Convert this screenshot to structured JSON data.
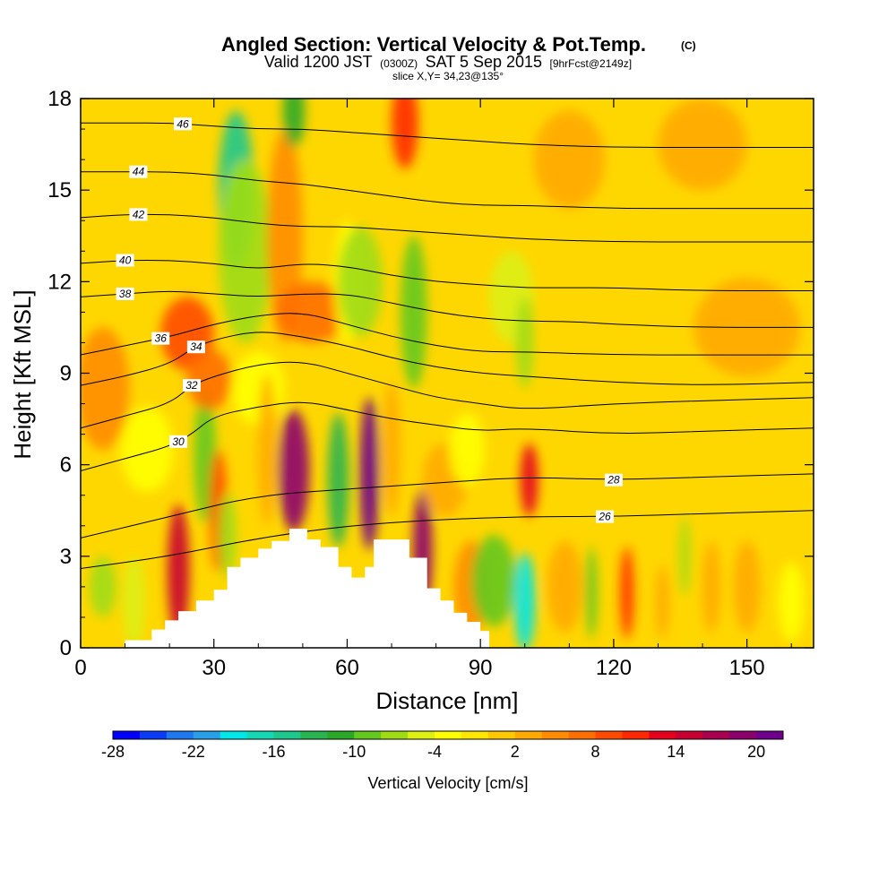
{
  "chart_data": {
    "type": "heatmap",
    "title": "Angled Section: Vertical Velocity & Pot.Temp.",
    "title_mark": "(C)",
    "subtitle_parts": [
      "Valid 1200 JST",
      "(0300Z)",
      "SAT 5 Sep 2015",
      "[9hrFcst@2149z]"
    ],
    "slice_label": "slice X,Y= 34,23@135°",
    "xlabel": "Distance [nm]",
    "ylabel": "Height [Kft MSL]",
    "xlim": [
      0,
      165
    ],
    "ylim": [
      0,
      18
    ],
    "x_ticks": [
      0,
      30,
      60,
      90,
      120,
      150
    ],
    "y_ticks": [
      0,
      3,
      6,
      9,
      12,
      15,
      18
    ],
    "colorbar": {
      "label": "Vertical Velocity [cm/s]",
      "tick_labels": [
        "-28",
        "-22",
        "-16",
        "-10",
        "-4",
        "2",
        "8",
        "14",
        "20"
      ],
      "colors": [
        "#0000ff",
        "#0a3cf8",
        "#1e78f0",
        "#28a0e8",
        "#00e6e6",
        "#14d7b4",
        "#1ec88c",
        "#28b450",
        "#2ca828",
        "#64c81e",
        "#a0dc14",
        "#dcf014",
        "#ffff00",
        "#ffe600",
        "#ffc800",
        "#ffaa00",
        "#ff8c00",
        "#ff6e00",
        "#ff4b00",
        "#ff2800",
        "#e6001e",
        "#c80032",
        "#aa0050",
        "#8c006e",
        "#6e008c"
      ]
    },
    "terrain_profile": {
      "x": [
        0,
        10,
        16,
        19,
        22,
        26,
        30,
        33,
        36,
        40,
        43,
        47,
        51,
        54,
        58,
        61,
        64,
        66,
        71,
        74,
        78,
        81,
        84,
        87,
        90,
        92,
        165
      ],
      "z": [
        0,
        0.25,
        0.6,
        0.9,
        1.2,
        1.55,
        1.9,
        2.65,
        2.95,
        3.25,
        3.5,
        3.9,
        3.55,
        3.3,
        2.65,
        2.3,
        2.65,
        3.55,
        3.55,
        2.95,
        1.95,
        1.55,
        1.15,
        0.85,
        0.55,
        0,
        0
      ]
    },
    "isentropes": [
      {
        "label": "26",
        "x": [
          0,
          20,
          40,
          60,
          80,
          100,
          120,
          140,
          165
        ],
        "y": [
          2.6,
          3.0,
          3.6,
          4.0,
          4.2,
          4.3,
          4.3,
          4.4,
          4.5
        ],
        "label_x": 118
      },
      {
        "label": "28",
        "x": [
          0,
          20,
          40,
          60,
          80,
          100,
          120,
          140,
          165
        ],
        "y": [
          3.6,
          4.3,
          5.0,
          5.2,
          5.4,
          5.6,
          5.5,
          5.6,
          5.7
        ],
        "label_x": 120
      },
      {
        "label": "30",
        "x": [
          0,
          10,
          20,
          25,
          30,
          40,
          50,
          60,
          70,
          80,
          90,
          100,
          120,
          140,
          165
        ],
        "y": [
          5.8,
          6.2,
          6.6,
          7.0,
          7.6,
          7.9,
          8.1,
          7.8,
          7.5,
          7.3,
          7.1,
          7.2,
          7.0,
          7.1,
          7.2
        ],
        "label_x": 22
      },
      {
        "label": "32",
        "x": [
          0,
          10,
          20,
          25,
          30,
          40,
          50,
          60,
          70,
          80,
          90,
          100,
          120,
          140,
          165
        ],
        "y": [
          7.2,
          7.6,
          8.0,
          8.6,
          8.9,
          9.3,
          9.4,
          9.0,
          8.6,
          8.2,
          8.0,
          7.8,
          8.0,
          8.1,
          8.2
        ],
        "label_x": 25
      },
      {
        "label": "34",
        "x": [
          0,
          10,
          20,
          25,
          30,
          40,
          50,
          60,
          70,
          80,
          90,
          100,
          120,
          140,
          165
        ],
        "y": [
          8.6,
          8.9,
          9.3,
          9.8,
          10.1,
          10.4,
          10.2,
          9.9,
          9.5,
          9.2,
          9.0,
          8.9,
          8.7,
          8.6,
          8.7
        ],
        "label_x": 26
      },
      {
        "label": "36",
        "x": [
          0,
          10,
          20,
          25,
          30,
          40,
          50,
          60,
          70,
          80,
          90,
          100,
          120,
          140,
          165
        ],
        "y": [
          9.6,
          9.9,
          10.2,
          10.4,
          10.6,
          10.9,
          11.0,
          10.6,
          10.2,
          9.9,
          9.7,
          9.7,
          9.6,
          9.6,
          9.6
        ],
        "label_x": 18
      },
      {
        "label": "38",
        "x": [
          0,
          10,
          20,
          30,
          40,
          50,
          60,
          70,
          80,
          90,
          100,
          110,
          120,
          140,
          165
        ],
        "y": [
          11.5,
          11.6,
          11.7,
          11.6,
          11.5,
          11.6,
          11.6,
          11.3,
          11.0,
          10.8,
          10.7,
          10.7,
          10.6,
          10.5,
          10.5
        ],
        "label_x": 10
      },
      {
        "label": "40",
        "x": [
          0,
          10,
          20,
          30,
          40,
          50,
          60,
          70,
          80,
          90,
          100,
          110,
          120,
          140,
          165
        ],
        "y": [
          12.6,
          12.7,
          12.7,
          12.6,
          12.4,
          12.6,
          12.5,
          12.2,
          12.0,
          11.9,
          11.8,
          11.8,
          11.8,
          11.7,
          11.7
        ],
        "label_x": 10
      },
      {
        "label": "42",
        "x": [
          0,
          10,
          20,
          30,
          40,
          50,
          60,
          70,
          80,
          90,
          100,
          120,
          140,
          165
        ],
        "y": [
          14.1,
          14.2,
          14.2,
          14.1,
          13.9,
          13.8,
          13.8,
          13.7,
          13.6,
          13.5,
          13.4,
          13.3,
          13.3,
          13.3
        ],
        "label_x": 13
      },
      {
        "label": "44",
        "x": [
          0,
          10,
          20,
          30,
          40,
          50,
          60,
          70,
          80,
          90,
          100,
          120,
          140,
          165
        ],
        "y": [
          15.6,
          15.6,
          15.6,
          15.5,
          15.3,
          15.2,
          15.0,
          14.8,
          14.6,
          14.5,
          14.5,
          14.4,
          14.4,
          14.4
        ],
        "label_x": 13
      },
      {
        "label": "46",
        "x": [
          0,
          10,
          20,
          30,
          40,
          50,
          60,
          70,
          80,
          90,
          100,
          120,
          140,
          165
        ],
        "y": [
          17.2,
          17.2,
          17.2,
          17.1,
          17.0,
          17.0,
          16.9,
          16.8,
          16.7,
          16.6,
          16.5,
          16.4,
          16.4,
          16.4
        ],
        "label_x": 23
      }
    ],
    "velocity_cells": [
      {
        "x": 5,
        "y": 8.5,
        "rx": 6,
        "ry": 2.0,
        "w": 6
      },
      {
        "x": 5,
        "y": 2.0,
        "rx": 3,
        "ry": 1.0,
        "w": -6
      },
      {
        "x": 12,
        "y": 1.5,
        "rx": 2.5,
        "ry": 1.5,
        "w": -4
      },
      {
        "x": 15,
        "y": 6.5,
        "rx": 6,
        "ry": 1.4,
        "w": -3
      },
      {
        "x": 22,
        "y": 2.5,
        "rx": 2.5,
        "ry": 2.2,
        "w": 16
      },
      {
        "x": 24,
        "y": 10.3,
        "rx": 6,
        "ry": 1.2,
        "w": 10
      },
      {
        "x": 28,
        "y": 6.3,
        "rx": 2.5,
        "ry": 2.2,
        "w": -8
      },
      {
        "x": 29,
        "y": 8.8,
        "rx": 5,
        "ry": 1.0,
        "w": 8
      },
      {
        "x": 31,
        "y": 4.5,
        "rx": 2.0,
        "ry": 2.0,
        "w": 10
      },
      {
        "x": 33,
        "y": 3.7,
        "rx": 2.0,
        "ry": 1.4,
        "w": -7
      },
      {
        "x": 35,
        "y": 15.0,
        "rx": 4,
        "ry": 2.6,
        "w": -14
      },
      {
        "x": 37,
        "y": 13.0,
        "rx": 6,
        "ry": 3.0,
        "w": -7
      },
      {
        "x": 40,
        "y": 8.5,
        "rx": 6,
        "ry": 1.2,
        "w": -3
      },
      {
        "x": 42,
        "y": 6.5,
        "rx": 2.0,
        "ry": 2.5,
        "w": 4
      },
      {
        "x": 46,
        "y": 13.5,
        "rx": 4,
        "ry": 3.5,
        "w": 6
      },
      {
        "x": 48,
        "y": 5.8,
        "rx": 3.5,
        "ry": 2.0,
        "w": 20
      },
      {
        "x": 48,
        "y": 17.6,
        "rx": 2.5,
        "ry": 1.2,
        "w": -10
      },
      {
        "x": 52,
        "y": 11.0,
        "rx": 8,
        "ry": 1.0,
        "w": 8
      },
      {
        "x": 58,
        "y": 5.5,
        "rx": 2.4,
        "ry": 2.2,
        "w": -12
      },
      {
        "x": 60,
        "y": 12.0,
        "rx": 3,
        "ry": 2.0,
        "w": -2
      },
      {
        "x": 63,
        "y": 12.0,
        "rx": 5,
        "ry": 1.8,
        "w": -7
      },
      {
        "x": 65,
        "y": 5.7,
        "rx": 2.2,
        "ry": 2.5,
        "w": 22
      },
      {
        "x": 70,
        "y": 6.5,
        "rx": 2.0,
        "ry": 2.2,
        "w": 4
      },
      {
        "x": 73,
        "y": 17.2,
        "rx": 3,
        "ry": 1.5,
        "w": 12
      },
      {
        "x": 75,
        "y": 11.0,
        "rx": 3,
        "ry": 2.5,
        "w": -8
      },
      {
        "x": 77,
        "y": 3.2,
        "rx": 2.2,
        "ry": 2.0,
        "w": 20
      },
      {
        "x": 82,
        "y": 5.5,
        "rx": 5,
        "ry": 1.2,
        "w": 4
      },
      {
        "x": 87,
        "y": 6.5,
        "rx": 4,
        "ry": 1.2,
        "w": -3
      },
      {
        "x": 88,
        "y": 2.0,
        "rx": 4,
        "ry": 1.5,
        "w": 6
      },
      {
        "x": 93,
        "y": 2.2,
        "rx": 5,
        "ry": 1.5,
        "w": -8
      },
      {
        "x": 97,
        "y": 11.5,
        "rx": 5,
        "ry": 1.5,
        "w": -5
      },
      {
        "x": 100,
        "y": 1.5,
        "rx": 2.4,
        "ry": 1.6,
        "w": -18
      },
      {
        "x": 101,
        "y": 5.5,
        "rx": 2.0,
        "ry": 1.2,
        "w": 14
      },
      {
        "x": 100,
        "y": 10.0,
        "rx": 2,
        "ry": 1.5,
        "w": -6
      },
      {
        "x": 109,
        "y": 2.0,
        "rx": 4,
        "ry": 1.5,
        "w": 4
      },
      {
        "x": 115,
        "y": 1.8,
        "rx": 1.3,
        "ry": 1.5,
        "w": -8
      },
      {
        "x": 123,
        "y": 1.8,
        "rx": 1.5,
        "ry": 1.5,
        "w": 12
      },
      {
        "x": 131,
        "y": 1.5,
        "rx": 1.5,
        "ry": 1.2,
        "w": 4
      },
      {
        "x": 136,
        "y": 3.0,
        "rx": 1.2,
        "ry": 1.3,
        "w": -6
      },
      {
        "x": 142,
        "y": 2.0,
        "rx": 2,
        "ry": 1.5,
        "w": 4
      },
      {
        "x": 150,
        "y": 2.0,
        "rx": 3,
        "ry": 1.5,
        "w": 4
      },
      {
        "x": 160,
        "y": 1.5,
        "rx": 3,
        "ry": 1.3,
        "w": -2
      },
      {
        "x": 140,
        "y": 16.5,
        "rx": 10,
        "ry": 1.5,
        "w": 3
      },
      {
        "x": 110,
        "y": 16.0,
        "rx": 8,
        "ry": 1.6,
        "w": 4
      },
      {
        "x": 150,
        "y": 10.5,
        "rx": 12,
        "ry": 1.6,
        "w": 3
      }
    ]
  }
}
